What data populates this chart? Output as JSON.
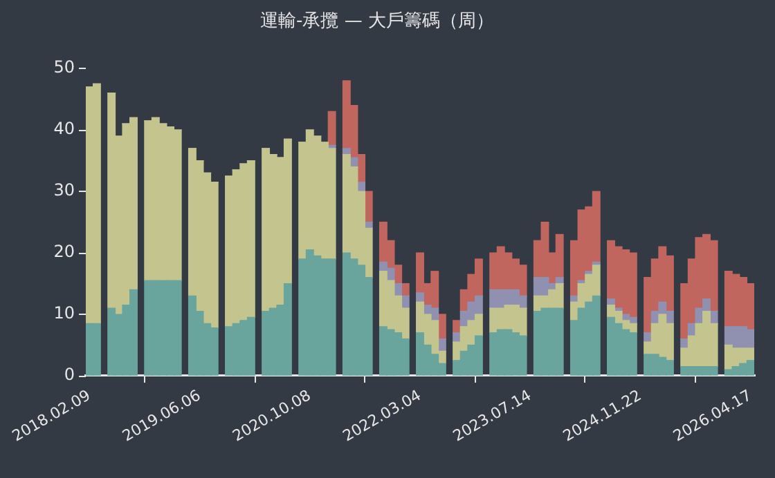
{
  "chart_data": {
    "type": "bar",
    "title": "運輸-承攬 — 大戶籌碼（周）",
    "stacked": true,
    "grid": false,
    "legend": false,
    "categories": [
      "2018.02.09",
      null,
      null,
      null,
      null,
      null,
      null,
      null,
      null,
      null,
      null,
      null,
      null,
      null,
      null,
      "2019.06.06",
      null,
      null,
      null,
      null,
      null,
      null,
      null,
      null,
      null,
      null,
      null,
      null,
      null,
      null,
      "2020.10.08",
      null,
      null,
      null,
      null,
      null,
      null,
      null,
      null,
      null,
      null,
      null,
      null,
      null,
      null,
      "2022.03.04",
      null,
      null,
      null,
      null,
      null,
      null,
      null,
      null,
      null,
      null,
      null,
      null,
      null,
      null,
      "2023.07.14",
      null,
      null,
      null,
      null,
      null,
      null,
      null,
      null,
      null,
      null,
      null,
      null,
      null,
      null,
      "2024.11.22",
      null,
      null,
      null,
      null,
      null,
      null,
      null,
      null,
      null,
      null,
      null,
      null,
      null,
      null,
      "2026.04.17"
    ],
    "ylim": [
      0,
      50
    ],
    "yticks": [
      0,
      10,
      20,
      30,
      40,
      50
    ],
    "series": [
      {
        "color": "#6aa59d",
        "values": [
          8.5,
          8.5,
          null,
          11,
          10,
          11.5,
          14,
          null,
          15.5,
          15.5,
          15.5,
          15.5,
          15.5,
          null,
          13,
          10.5,
          8.5,
          7.8,
          null,
          8,
          8.5,
          9,
          9.5,
          null,
          10.5,
          11,
          11.5,
          15,
          null,
          19,
          20.5,
          19.5,
          19,
          19,
          null,
          20,
          19,
          18,
          16,
          null,
          8,
          7.5,
          7,
          6,
          null,
          7,
          5,
          3.5,
          2,
          null,
          2.5,
          4,
          5,
          6.5,
          null,
          7,
          7.5,
          7.5,
          7,
          6.5,
          null,
          10.5,
          11,
          11,
          11,
          null,
          9,
          11,
          12,
          13,
          null,
          9.5,
          8.5,
          7.5,
          7,
          null,
          3.5,
          3.5,
          3,
          2.5,
          null,
          1.5,
          1.5,
          1.5,
          1.5,
          1.5,
          null,
          1,
          1.5,
          2,
          2.5
        ]
      },
      {
        "color": "#c4c48e",
        "values": [
          38.5,
          39,
          null,
          35,
          29,
          29.5,
          28,
          null,
          26,
          26.5,
          25.5,
          25,
          24.5,
          null,
          24,
          24.5,
          24.5,
          23.7,
          null,
          24.5,
          25,
          25.5,
          25.5,
          null,
          26.5,
          25,
          24,
          23.5,
          null,
          19,
          19.5,
          19.5,
          19,
          18,
          null,
          16,
          15,
          12,
          8,
          null,
          9,
          8,
          6,
          5,
          null,
          5,
          5,
          5.5,
          2,
          null,
          3,
          4,
          4,
          3.5,
          null,
          4,
          3.5,
          4,
          4.5,
          4.5,
          null,
          2.5,
          2,
          3,
          4,
          null,
          3,
          4,
          4.5,
          5,
          null,
          2,
          2,
          1.5,
          1.5,
          null,
          2,
          5,
          7,
          6,
          null,
          3,
          5,
          7,
          9,
          7,
          null,
          4,
          3,
          2.5,
          2
        ]
      },
      {
        "color": "#9090b0",
        "values": [
          0,
          0,
          null,
          0,
          0,
          0,
          0,
          null,
          0,
          0,
          0,
          0,
          0,
          null,
          0,
          0,
          0,
          0,
          null,
          0,
          0,
          0,
          0,
          null,
          0,
          0,
          0,
          0,
          null,
          0,
          0,
          0,
          0,
          0.5,
          null,
          1,
          1.5,
          1.5,
          1,
          null,
          1.5,
          2,
          2,
          2,
          null,
          1.5,
          1.5,
          2,
          2,
          null,
          1.5,
          2.5,
          3,
          3,
          null,
          3,
          3,
          2.5,
          2.5,
          2,
          null,
          3,
          3,
          1,
          1,
          null,
          1,
          0.5,
          0.5,
          0.5,
          null,
          1,
          0.5,
          1,
          1,
          null,
          1.5,
          2,
          2,
          2,
          null,
          1.5,
          2,
          2.5,
          2,
          2,
          null,
          3,
          3.5,
          3.5,
          3
        ]
      },
      {
        "color": "#c0665f",
        "values": [
          0,
          0,
          null,
          0,
          0,
          0,
          0,
          null,
          0,
          0,
          0,
          0,
          0,
          null,
          0,
          0,
          0,
          0,
          null,
          0,
          0,
          0,
          0,
          null,
          0,
          0,
          0,
          0,
          null,
          0,
          0,
          0,
          0,
          5.5,
          null,
          11,
          8.5,
          4.5,
          5,
          null,
          6.5,
          4.5,
          3,
          2,
          null,
          6.5,
          3.5,
          6,
          4,
          null,
          2,
          3.5,
          4.5,
          6,
          null,
          6,
          7,
          6,
          5,
          5,
          null,
          6,
          9,
          5,
          7,
          null,
          9,
          11.5,
          10.5,
          11.5,
          null,
          9.5,
          10,
          10.5,
          10.5,
          null,
          9,
          8.5,
          9,
          9,
          null,
          9,
          10.5,
          11.5,
          10.5,
          11.5,
          null,
          9,
          8.5,
          8,
          7.5
        ]
      }
    ]
  }
}
